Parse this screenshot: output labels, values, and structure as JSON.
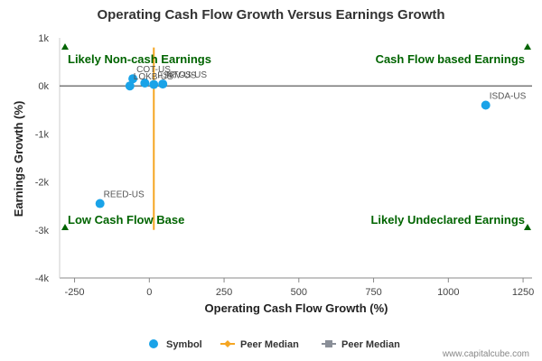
{
  "chart_data": {
    "type": "scatter",
    "title": "Operating Cash Flow Growth Versus Earnings Growth",
    "xlabel": "Operating Cash Flow Growth (%)",
    "ylabel": "Earnings Growth (%)",
    "xlim": [
      -300,
      1280
    ],
    "ylim": [
      -4000,
      1000
    ],
    "xticks": [
      -250,
      0,
      250,
      500,
      750,
      1000,
      1250
    ],
    "xtick_labels": [
      "-250",
      "0",
      "250",
      "500",
      "750",
      "1000",
      "1250"
    ],
    "yticks": [
      1000,
      0,
      -1000,
      -2000,
      -3000,
      -4000
    ],
    "ytick_labels": [
      "1k",
      "0k",
      "-1k",
      "-2k",
      "-3k",
      "-4k"
    ],
    "grid": false,
    "quadrant_labels": [
      {
        "text": "Likely Non-cash Earnings",
        "position": "top-left"
      },
      {
        "text": "Cash Flow based Earnings",
        "position": "top-right"
      },
      {
        "text": "Low Cash Flow Base",
        "position": "bottom-left"
      },
      {
        "text": "Likely Undeclared Earnings",
        "position": "bottom-right"
      }
    ],
    "points": [
      {
        "label": "COT-US",
        "x": -55,
        "y": 150
      },
      {
        "label": "LOKB-US",
        "x": -65,
        "y": 0
      },
      {
        "label": "",
        "x": -15,
        "y": 60
      },
      {
        "label": "FSRV-US",
        "x": 15,
        "y": 30
      },
      {
        "label": "NTOS-US",
        "x": 45,
        "y": 40
      },
      {
        "label": "ISDA-US",
        "x": 1125,
        "y": -400
      },
      {
        "label": "REED-US",
        "x": -165,
        "y": -2450
      }
    ],
    "peer_median_line": {
      "x": 15,
      "y_range": [
        -3000,
        800
      ]
    },
    "zero_line_y": 0,
    "series": [
      {
        "name": "Symbol",
        "color": "#1aa3e8",
        "marker": "circle"
      },
      {
        "name": "Peer Median",
        "color": "#f5a623",
        "marker": "diamond"
      },
      {
        "name": "Peer Median",
        "color": "#8a8f98",
        "marker": "square"
      }
    ],
    "legend_position": "bottom-center",
    "watermark": "www.capitalcube.com"
  }
}
